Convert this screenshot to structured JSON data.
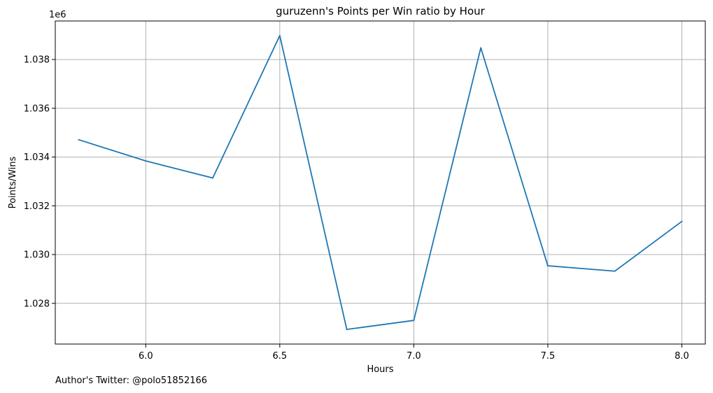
{
  "footer_note": "Author's Twitter: @polo51852166",
  "chart_data": {
    "type": "line",
    "title": "guruzenn's Points per Win ratio by Hour",
    "xlabel": "Hours",
    "ylabel": "Points/Wins",
    "y_offset_label": "1e6",
    "x": [
      5.75,
      6.0,
      6.25,
      6.5,
      6.75,
      7.0,
      7.25,
      7.5,
      7.75,
      8.0
    ],
    "series": [
      {
        "name": "",
        "color": "#1f77b4",
        "values": [
          1034710,
          1033840,
          1033140,
          1038980,
          1026930,
          1027300,
          1038480,
          1029540,
          1029320,
          1031360
        ]
      }
    ],
    "xlim": [
      5.6625,
      8.0875
    ],
    "ylim": [
      1026330,
      1039580
    ],
    "x_ticks": [
      6.0,
      6.5,
      7.0,
      7.5,
      8.0
    ],
    "x_tick_labels": [
      "6.0",
      "6.5",
      "7.0",
      "7.5",
      "8.0"
    ],
    "y_ticks": [
      1028000,
      1030000,
      1032000,
      1034000,
      1036000,
      1038000
    ],
    "y_tick_labels": [
      "1.028",
      "1.030",
      "1.032",
      "1.034",
      "1.036",
      "1.038"
    ],
    "grid": true,
    "colors": {
      "grid": "#b0b0b0",
      "axes": "#000000"
    }
  }
}
